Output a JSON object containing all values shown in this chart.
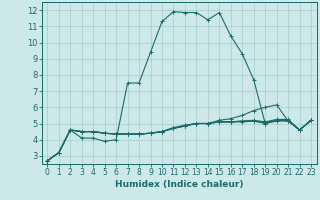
{
  "xlabel": "Humidex (Indice chaleur)",
  "bg_color": "#cce8e8",
  "grid_color": "#aacccc",
  "line_color": "#1a6b6b",
  "xlim": [
    -0.5,
    23.5
  ],
  "ylim": [
    2.5,
    12.5
  ],
  "xticks": [
    0,
    1,
    2,
    3,
    4,
    5,
    6,
    7,
    8,
    9,
    10,
    11,
    12,
    13,
    14,
    15,
    16,
    17,
    18,
    19,
    20,
    21,
    22,
    23
  ],
  "yticks": [
    3,
    4,
    5,
    6,
    7,
    8,
    9,
    10,
    11,
    12
  ],
  "series": [
    [
      2.7,
      3.2,
      4.6,
      4.1,
      4.1,
      3.9,
      4.0,
      7.5,
      7.5,
      9.4,
      11.3,
      11.9,
      11.85,
      11.85,
      11.4,
      11.85,
      10.4,
      9.3,
      7.7,
      5.0,
      5.2,
      5.2,
      4.6,
      5.2
    ],
    [
      2.7,
      3.2,
      4.6,
      4.5,
      4.5,
      4.4,
      4.35,
      4.35,
      4.35,
      4.4,
      4.5,
      4.7,
      4.85,
      5.0,
      5.0,
      5.1,
      5.1,
      5.1,
      5.15,
      5.0,
      5.15,
      5.15,
      4.6,
      5.2
    ],
    [
      2.7,
      3.2,
      4.6,
      4.5,
      4.5,
      4.4,
      4.35,
      4.35,
      4.35,
      4.4,
      4.5,
      4.7,
      4.85,
      5.0,
      5.0,
      5.1,
      5.1,
      5.15,
      5.15,
      5.05,
      5.2,
      5.2,
      4.6,
      5.2
    ],
    [
      2.7,
      3.2,
      4.6,
      4.5,
      4.5,
      4.4,
      4.35,
      4.35,
      4.35,
      4.4,
      4.5,
      4.7,
      4.85,
      5.0,
      5.0,
      5.1,
      5.1,
      5.15,
      5.2,
      5.1,
      5.25,
      5.25,
      4.6,
      5.2
    ],
    [
      2.7,
      3.2,
      4.6,
      4.5,
      4.5,
      4.4,
      4.35,
      4.35,
      4.35,
      4.4,
      4.5,
      4.75,
      4.9,
      5.0,
      5.0,
      5.2,
      5.3,
      5.5,
      5.8,
      6.0,
      6.15,
      5.15,
      4.6,
      5.2
    ]
  ]
}
